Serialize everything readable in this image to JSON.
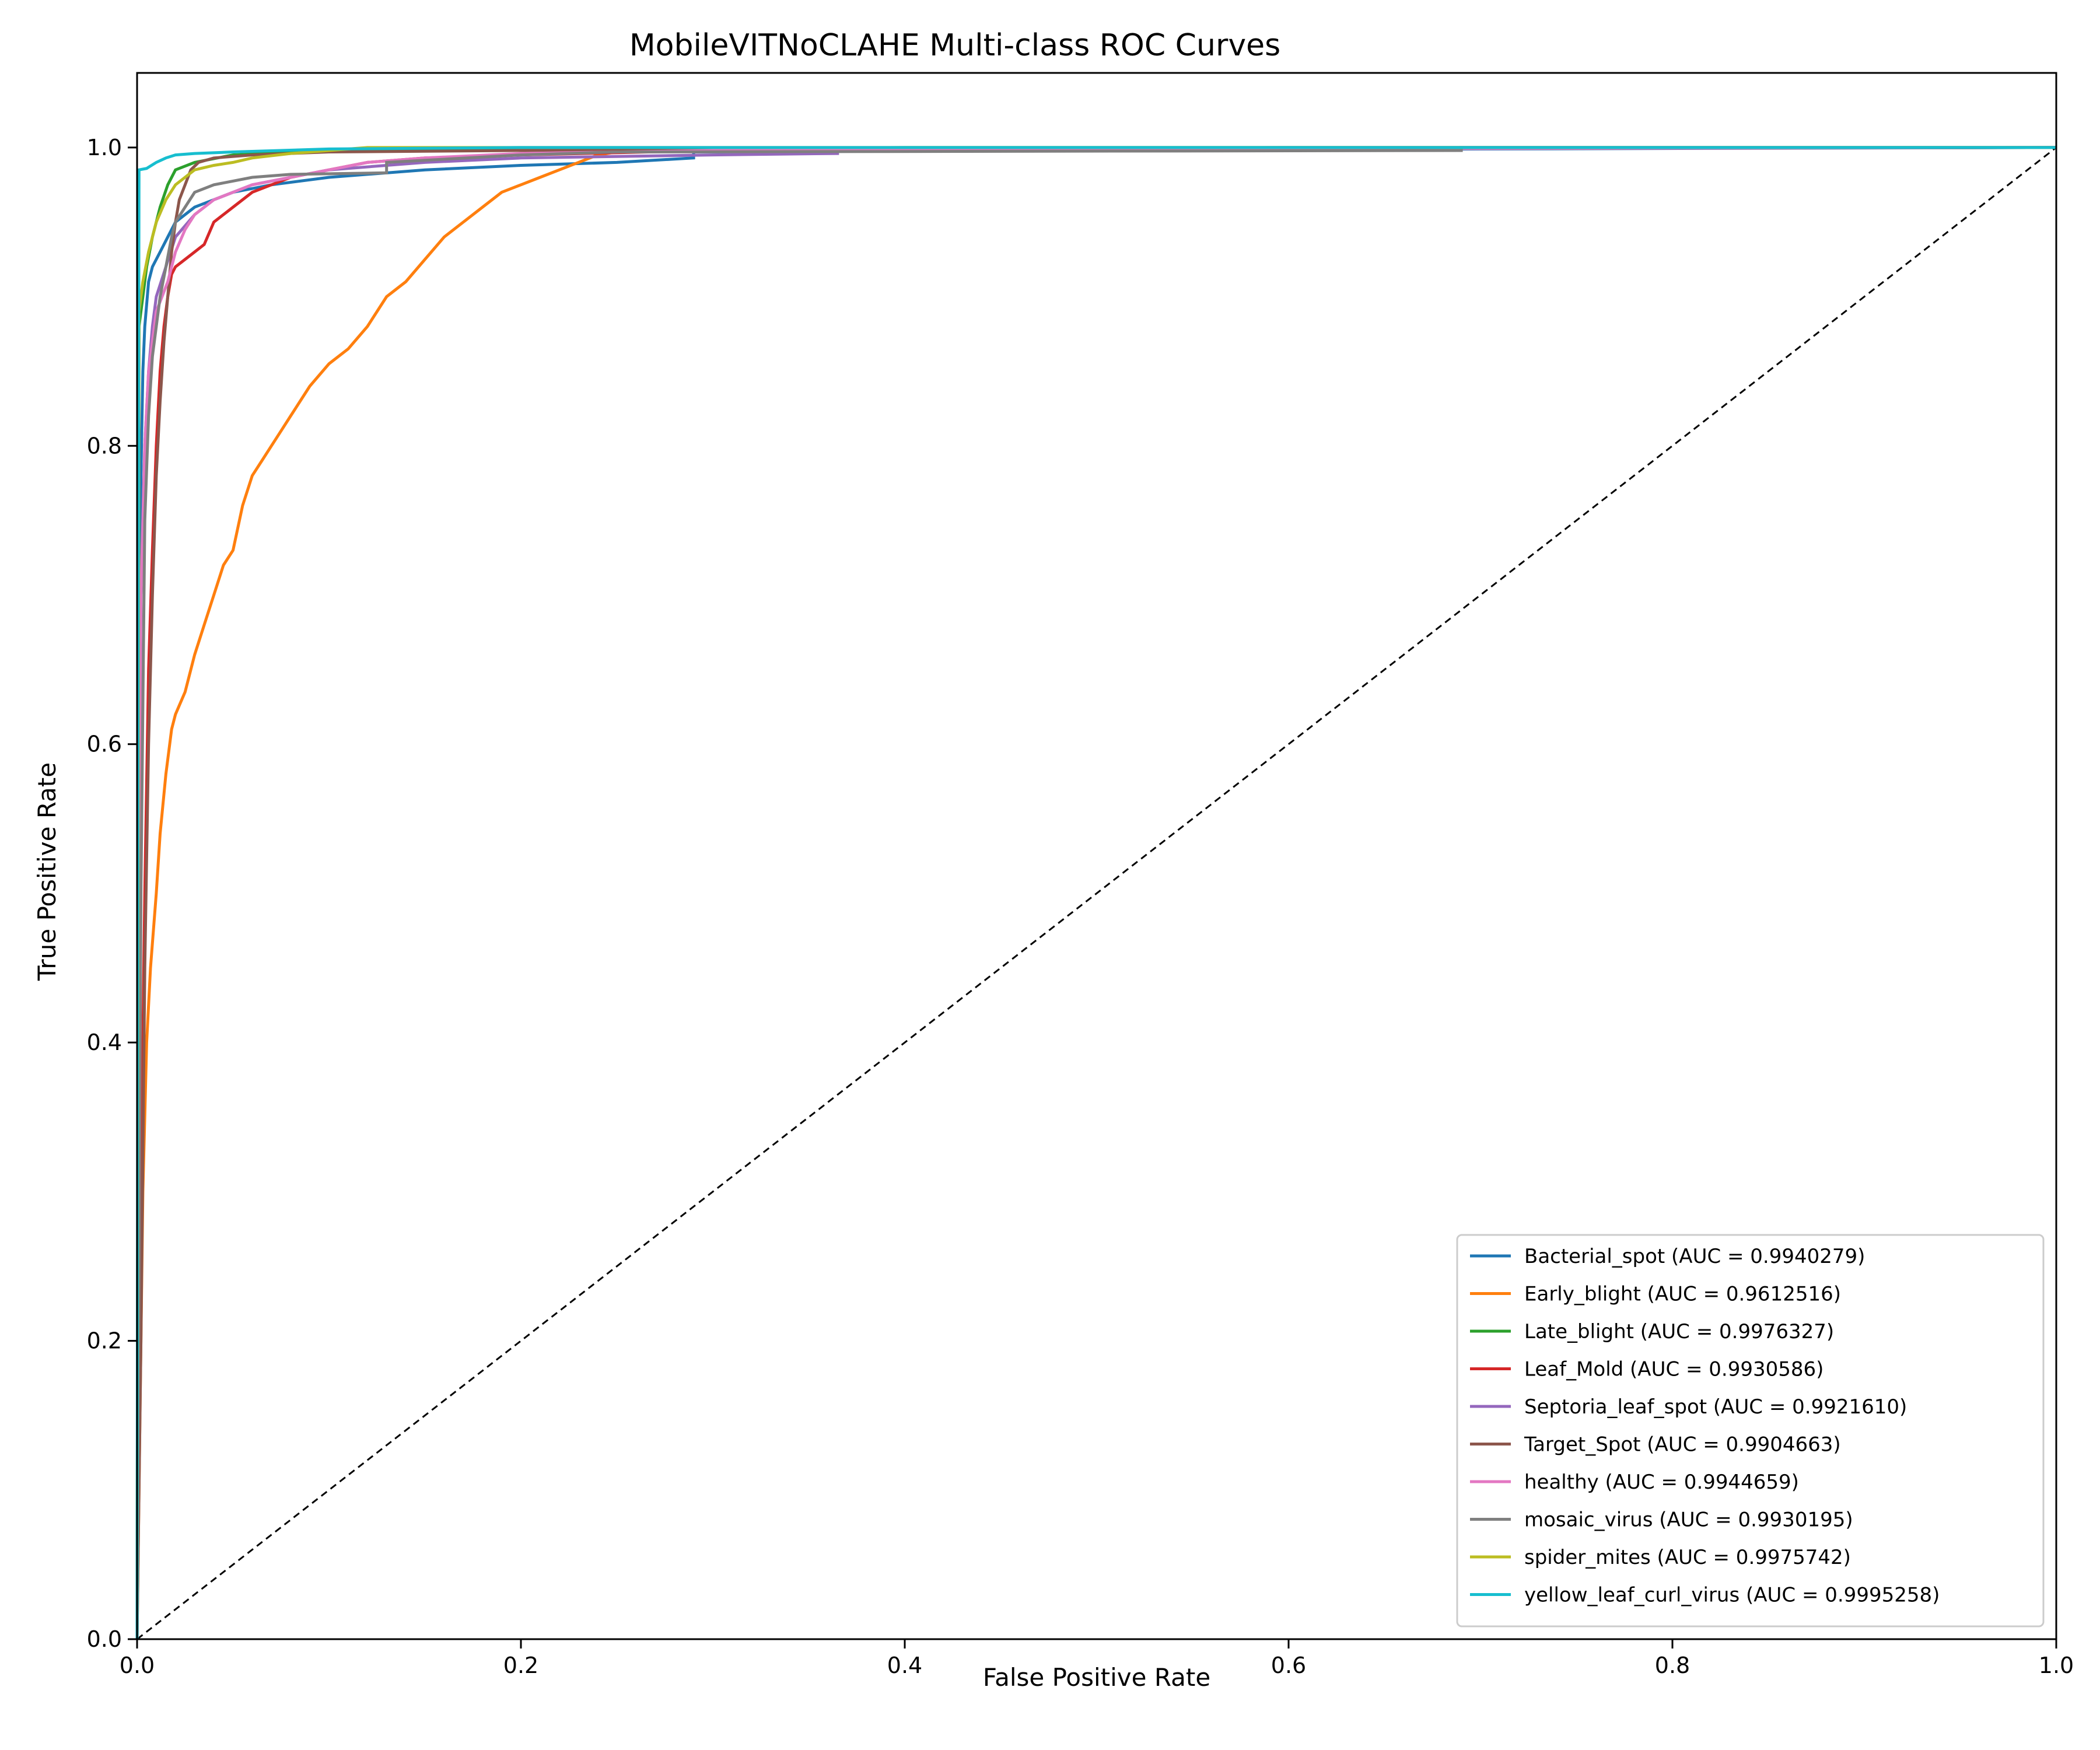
{
  "chart_data": {
    "type": "line",
    "title": "MobileVITNoCLAHE Multi-class ROC Curves",
    "xlabel": "False Positive Rate",
    "ylabel": "True Positive Rate",
    "xlim": [
      0.0,
      1.0
    ],
    "ylim": [
      0.0,
      1.05
    ],
    "x_ticks": [
      "0.0",
      "0.2",
      "0.4",
      "0.6",
      "0.8",
      "1.0"
    ],
    "y_ticks": [
      "0.0",
      "0.2",
      "0.4",
      "0.6",
      "0.8",
      "1.0"
    ],
    "legend_position": "lower-right",
    "grid": false,
    "chance_line": {
      "x": [
        0,
        1
      ],
      "y": [
        0,
        1
      ],
      "style": "dashed",
      "color": "#000000"
    },
    "series": [
      {
        "name": "Bacterial_spot (AUC = 0.9940279)",
        "color": "#1f77b4",
        "x": [
          0,
          0.001,
          0.002,
          0.003,
          0.004,
          0.006,
          0.008,
          0.012,
          0.016,
          0.02,
          0.03,
          0.05,
          0.07,
          0.1,
          0.15,
          0.2,
          0.25,
          0.29,
          0.29,
          0.5,
          0.7,
          1.0
        ],
        "y": [
          0,
          0.6,
          0.78,
          0.85,
          0.88,
          0.91,
          0.92,
          0.93,
          0.94,
          0.95,
          0.96,
          0.97,
          0.975,
          0.98,
          0.985,
          0.988,
          0.99,
          0.993,
          0.997,
          0.998,
          0.999,
          1.0
        ]
      },
      {
        "name": "Early_blight (AUC = 0.9612516)",
        "color": "#ff7f0e",
        "x": [
          0,
          0.001,
          0.003,
          0.005,
          0.007,
          0.01,
          0.012,
          0.015,
          0.018,
          0.02,
          0.025,
          0.03,
          0.035,
          0.04,
          0.045,
          0.05,
          0.055,
          0.06,
          0.065,
          0.07,
          0.075,
          0.08,
          0.09,
          0.1,
          0.11,
          0.12,
          0.13,
          0.14,
          0.15,
          0.16,
          0.17,
          0.18,
          0.19,
          0.2,
          0.21,
          0.22,
          0.23,
          0.24,
          0.25,
          0.35,
          0.5,
          1.0
        ],
        "y": [
          0,
          0.1,
          0.3,
          0.4,
          0.45,
          0.5,
          0.54,
          0.58,
          0.61,
          0.62,
          0.635,
          0.66,
          0.68,
          0.7,
          0.72,
          0.73,
          0.76,
          0.78,
          0.79,
          0.8,
          0.81,
          0.82,
          0.84,
          0.855,
          0.865,
          0.88,
          0.9,
          0.91,
          0.925,
          0.94,
          0.95,
          0.96,
          0.97,
          0.975,
          0.98,
          0.985,
          0.99,
          0.995,
          0.997,
          0.998,
          0.999,
          1.0
        ]
      },
      {
        "name": "Late_blight (AUC = 0.9976327)",
        "color": "#2ca02c",
        "x": [
          0,
          0.001,
          0.003,
          0.005,
          0.008,
          0.012,
          0.016,
          0.02,
          0.03,
          0.05,
          0.1,
          0.2,
          0.4,
          1.0
        ],
        "y": [
          0,
          0.88,
          0.9,
          0.92,
          0.94,
          0.96,
          0.975,
          0.985,
          0.99,
          0.995,
          0.998,
          0.999,
          1.0,
          1.0
        ]
      },
      {
        "name": "Leaf_Mold (AUC = 0.9930586)",
        "color": "#d62728",
        "x": [
          0,
          0.002,
          0.004,
          0.006,
          0.008,
          0.01,
          0.012,
          0.014,
          0.016,
          0.018,
          0.02,
          0.025,
          0.03,
          0.035,
          0.04,
          0.05,
          0.06,
          0.07,
          0.08,
          0.1,
          0.12,
          0.15,
          0.2,
          0.3,
          0.5,
          1.0
        ],
        "y": [
          0,
          0.3,
          0.5,
          0.65,
          0.73,
          0.8,
          0.85,
          0.88,
          0.9,
          0.915,
          0.92,
          0.925,
          0.93,
          0.935,
          0.95,
          0.96,
          0.97,
          0.975,
          0.98,
          0.985,
          0.99,
          0.993,
          0.995,
          0.998,
          0.999,
          1.0
        ]
      },
      {
        "name": "Septoria_leaf_spot (AUC = 0.9921610)",
        "color": "#9467bd",
        "x": [
          0,
          0.001,
          0.002,
          0.004,
          0.006,
          0.008,
          0.01,
          0.015,
          0.02,
          0.03,
          0.04,
          0.06,
          0.08,
          0.1,
          0.15,
          0.2,
          0.3,
          0.365,
          0.365,
          0.6,
          1.0
        ],
        "y": [
          0,
          0.5,
          0.7,
          0.8,
          0.85,
          0.88,
          0.9,
          0.92,
          0.94,
          0.955,
          0.965,
          0.975,
          0.98,
          0.985,
          0.99,
          0.993,
          0.995,
          0.996,
          0.998,
          0.999,
          1.0
        ]
      },
      {
        "name": "Target_Spot (AUC = 0.9904663)",
        "color": "#8c564b",
        "x": [
          0,
          0.002,
          0.004,
          0.006,
          0.008,
          0.01,
          0.012,
          0.014,
          0.016,
          0.018,
          0.02,
          0.022,
          0.025,
          0.028,
          0.032,
          0.04,
          0.06,
          0.1,
          0.2,
          0.35,
          0.6,
          1.0
        ],
        "y": [
          0,
          0.2,
          0.45,
          0.6,
          0.7,
          0.78,
          0.83,
          0.87,
          0.9,
          0.93,
          0.95,
          0.965,
          0.975,
          0.985,
          0.99,
          0.993,
          0.995,
          0.997,
          0.998,
          0.999,
          1.0,
          1.0
        ]
      },
      {
        "name": "healthy (AUC = 0.9944659)",
        "color": "#e377c2",
        "x": [
          0,
          0.001,
          0.002,
          0.004,
          0.006,
          0.008,
          0.01,
          0.013,
          0.016,
          0.02,
          0.025,
          0.03,
          0.04,
          0.05,
          0.06,
          0.08,
          0.1,
          0.12,
          0.15,
          0.2,
          0.3,
          0.5,
          1.0
        ],
        "y": [
          0,
          0.55,
          0.7,
          0.8,
          0.85,
          0.87,
          0.89,
          0.9,
          0.91,
          0.93,
          0.945,
          0.955,
          0.965,
          0.97,
          0.975,
          0.98,
          0.985,
          0.99,
          0.993,
          0.996,
          0.998,
          0.999,
          1.0
        ]
      },
      {
        "name": "mosaic_virus (AUC = 0.9930195)",
        "color": "#7f7f7f",
        "x": [
          0,
          0.002,
          0.004,
          0.006,
          0.008,
          0.01,
          0.012,
          0.015,
          0.018,
          0.02,
          0.025,
          0.03,
          0.04,
          0.06,
          0.08,
          0.13,
          0.13,
          0.2,
          0.25,
          0.69,
          0.69,
          1.0
        ],
        "y": [
          0,
          0.5,
          0.75,
          0.82,
          0.86,
          0.88,
          0.9,
          0.92,
          0.94,
          0.95,
          0.96,
          0.97,
          0.975,
          0.98,
          0.982,
          0.983,
          0.99,
          0.995,
          0.997,
          0.998,
          1.0,
          1.0
        ]
      },
      {
        "name": "spider_mites (AUC = 0.9975742)",
        "color": "#bcbd22",
        "x": [
          0,
          0.001,
          0.003,
          0.006,
          0.01,
          0.015,
          0.02,
          0.03,
          0.04,
          0.05,
          0.06,
          0.08,
          0.1,
          0.12,
          0.2,
          1.0
        ],
        "y": [
          0,
          0.89,
          0.91,
          0.93,
          0.95,
          0.965,
          0.975,
          0.985,
          0.988,
          0.99,
          0.993,
          0.996,
          0.998,
          1.0,
          1.0,
          1.0
        ]
      },
      {
        "name": "yellow_leaf_curl_virus (AUC = 0.9995258)",
        "color": "#17becf",
        "x": [
          0,
          0.0005,
          0.001,
          0.005,
          0.01,
          0.015,
          0.02,
          0.03,
          0.05,
          0.1,
          0.2,
          1.0
        ],
        "y": [
          0,
          0.6,
          0.985,
          0.986,
          0.99,
          0.993,
          0.995,
          0.996,
          0.997,
          0.999,
          1.0,
          1.0
        ]
      }
    ]
  }
}
